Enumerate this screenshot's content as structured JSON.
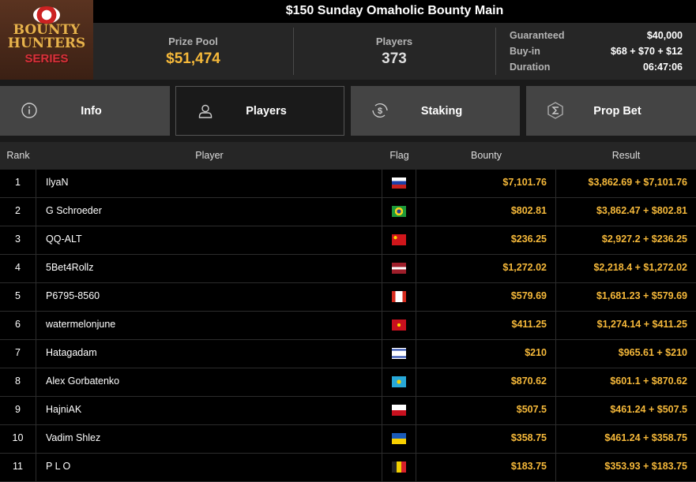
{
  "title": "$150 Sunday Omaholic Bounty Main",
  "logo": {
    "line1": "BOUNTY",
    "line2": "HUNTERS",
    "line3": "SERIES"
  },
  "stats": {
    "prize_pool_label": "Prize Pool",
    "prize_pool": "$51,474",
    "players_label": "Players",
    "players": "373"
  },
  "details": [
    {
      "label": "Guaranteed",
      "value": "$40,000"
    },
    {
      "label": "Buy-in",
      "value": "$68 + $70 + $12"
    },
    {
      "label": "Duration",
      "value": "06:47:06"
    }
  ],
  "tabs": [
    {
      "label": "Info",
      "icon": "info-icon"
    },
    {
      "label": "Players",
      "icon": "user-icon",
      "active": true
    },
    {
      "label": "Staking",
      "icon": "dollar-cycle-icon"
    },
    {
      "label": "Prop Bet",
      "icon": "prop-bet-hexagon-icon"
    }
  ],
  "columns": {
    "rank": "Rank",
    "player": "Player",
    "flag": "Flag",
    "bounty": "Bounty",
    "result": "Result"
  },
  "colors": {
    "accent": "#f6b93a",
    "header_bg": "#262626",
    "tab_bg": "#444444"
  },
  "rows": [
    {
      "rank": "1",
      "player": "IlyaN",
      "flag": "RU",
      "bounty": "$7,101.76",
      "result": "$3,862.69 + $7,101.76"
    },
    {
      "rank": "2",
      "player": "G Schroeder",
      "flag": "BR",
      "bounty": "$802.81",
      "result": "$3,862.47 + $802.81"
    },
    {
      "rank": "3",
      "player": "QQ-ALT",
      "flag": "CN",
      "bounty": "$236.25",
      "result": "$2,927.2 + $236.25"
    },
    {
      "rank": "4",
      "player": "5Bet4Rollz",
      "flag": "LV",
      "bounty": "$1,272.02",
      "result": "$2,218.4 + $1,272.02"
    },
    {
      "rank": "5",
      "player": "P6795-8560",
      "flag": "CA",
      "bounty": "$579.69",
      "result": "$1,681.23 + $579.69"
    },
    {
      "rank": "6",
      "player": "watermelonjune",
      "flag": "VN",
      "bounty": "$411.25",
      "result": "$1,274.14 + $411.25"
    },
    {
      "rank": "7",
      "player": "Hatagadam",
      "flag": "IL",
      "bounty": "$210",
      "result": "$965.61 + $210"
    },
    {
      "rank": "8",
      "player": "Alex Gorbatenko",
      "flag": "KZ",
      "bounty": "$870.62",
      "result": "$601.1 + $870.62"
    },
    {
      "rank": "9",
      "player": "HajniAK",
      "flag": "PL",
      "bounty": "$507.5",
      "result": "$461.24 + $507.5"
    },
    {
      "rank": "10",
      "player": "Vadim Shlez",
      "flag": "UA",
      "bounty": "$358.75",
      "result": "$461.24 + $358.75"
    },
    {
      "rank": "11",
      "player": "P L O",
      "flag": "BE",
      "bounty": "$183.75",
      "result": "$353.93 + $183.75"
    }
  ]
}
